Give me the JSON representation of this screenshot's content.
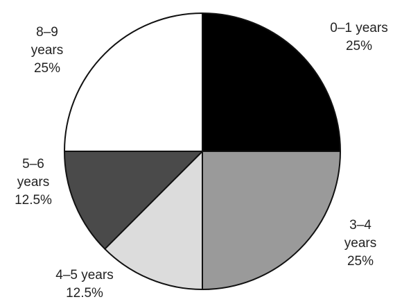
{
  "chart_data": {
    "type": "pie",
    "title": "",
    "start": "12 o'clock, clockwise",
    "slices": [
      {
        "label": "0–1 years",
        "value": 25,
        "value_label": "25%",
        "color": "#000000",
        "label_lines": [
          "0–1 years",
          "25%"
        ]
      },
      {
        "label": "3–4 years",
        "value": 25,
        "value_label": "25%",
        "color": "#9a9a9a",
        "label_lines": [
          "3–4",
          "years",
          "25%"
        ]
      },
      {
        "label": "4–5 years",
        "value": 12.5,
        "value_label": "12.5%",
        "color": "#dcdcdc",
        "label_lines": [
          "4–5 years",
          "12.5%"
        ]
      },
      {
        "label": "5–6 years",
        "value": 12.5,
        "value_label": "12.5%",
        "color": "#4a4a4a",
        "label_lines": [
          "5–6",
          "years",
          "12.5%"
        ]
      },
      {
        "label": "8–9 years",
        "value": 25,
        "value_label": "25%",
        "color": "#ffffff",
        "label_lines": [
          "8–9",
          "years",
          "25%"
        ]
      }
    ]
  }
}
